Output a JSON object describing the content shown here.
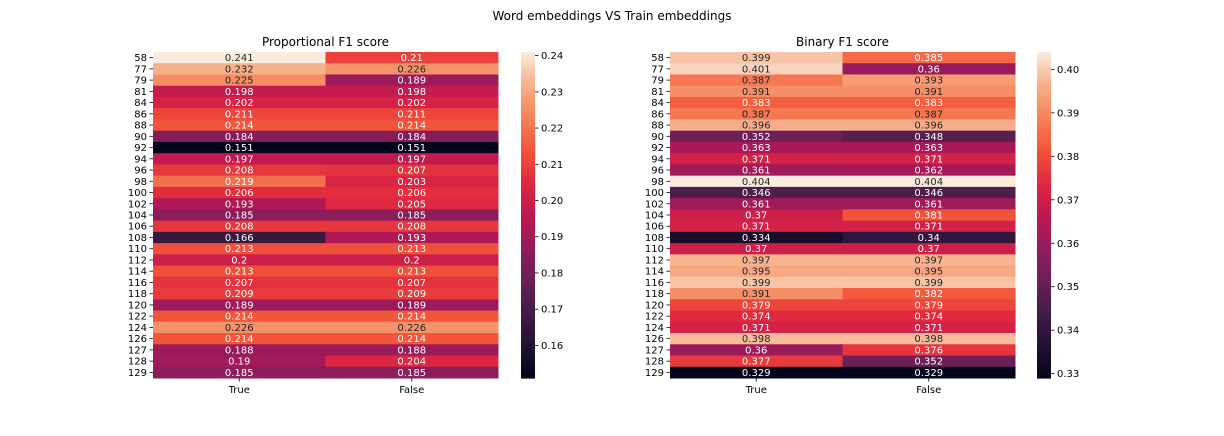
{
  "suptitle": "Word embeddings VS Train embeddings",
  "chart_data": [
    {
      "type": "heatmap",
      "title": "Proportional F1 score",
      "rows": [
        "58",
        "77",
        "79",
        "81",
        "84",
        "86",
        "88",
        "90",
        "92",
        "94",
        "96",
        "98",
        "100",
        "102",
        "104",
        "106",
        "108",
        "110",
        "112",
        "114",
        "116",
        "118",
        "120",
        "122",
        "124",
        "126",
        "127",
        "128",
        "129"
      ],
      "columns": [
        "True",
        "False"
      ],
      "values": [
        [
          "0.241",
          "0.21"
        ],
        [
          "0.232",
          "0.226"
        ],
        [
          "0.225",
          "0.189"
        ],
        [
          "0.198",
          "0.198"
        ],
        [
          "0.202",
          "0.202"
        ],
        [
          "0.211",
          "0.211"
        ],
        [
          "0.214",
          "0.214"
        ],
        [
          "0.184",
          "0.184"
        ],
        [
          "0.151",
          "0.151"
        ],
        [
          "0.197",
          "0.197"
        ],
        [
          "0.208",
          "0.207"
        ],
        [
          "0.219",
          "0.203"
        ],
        [
          "0.206",
          "0.206"
        ],
        [
          "0.193",
          "0.205"
        ],
        [
          "0.185",
          "0.185"
        ],
        [
          "0.208",
          "0.208"
        ],
        [
          "0.166",
          "0.193"
        ],
        [
          "0.213",
          "0.213"
        ],
        [
          "0.2",
          "0.2"
        ],
        [
          "0.213",
          "0.213"
        ],
        [
          "0.207",
          "0.207"
        ],
        [
          "0.209",
          "0.209"
        ],
        [
          "0.189",
          "0.189"
        ],
        [
          "0.214",
          "0.214"
        ],
        [
          "0.226",
          "0.226"
        ],
        [
          "0.214",
          "0.214"
        ],
        [
          "0.188",
          "0.188"
        ],
        [
          "0.19",
          "0.204"
        ],
        [
          "0.185",
          "0.185"
        ]
      ],
      "vmin": 0.151,
      "vmax": 0.241,
      "colorbar_ticks": [
        "0.16",
        "0.17",
        "0.18",
        "0.19",
        "0.20",
        "0.21",
        "0.22",
        "0.23",
        "0.24"
      ],
      "colormap": "rocket"
    },
    {
      "type": "heatmap",
      "title": "Binary F1 score",
      "rows": [
        "58",
        "77",
        "79",
        "81",
        "84",
        "86",
        "88",
        "90",
        "92",
        "94",
        "96",
        "98",
        "100",
        "102",
        "104",
        "106",
        "108",
        "110",
        "112",
        "114",
        "116",
        "118",
        "120",
        "122",
        "124",
        "126",
        "127",
        "128",
        "129"
      ],
      "columns": [
        "True",
        "False"
      ],
      "values": [
        [
          "0.399",
          "0.385"
        ],
        [
          "0.401",
          "0.36"
        ],
        [
          "0.387",
          "0.393"
        ],
        [
          "0.391",
          "0.391"
        ],
        [
          "0.383",
          "0.383"
        ],
        [
          "0.387",
          "0.387"
        ],
        [
          "0.396",
          "0.396"
        ],
        [
          "0.352",
          "0.348"
        ],
        [
          "0.363",
          "0.363"
        ],
        [
          "0.371",
          "0.371"
        ],
        [
          "0.361",
          "0.362"
        ],
        [
          "0.404",
          "0.404"
        ],
        [
          "0.346",
          "0.346"
        ],
        [
          "0.361",
          "0.361"
        ],
        [
          "0.37",
          "0.381"
        ],
        [
          "0.371",
          "0.371"
        ],
        [
          "0.334",
          "0.34"
        ],
        [
          "0.37",
          "0.37"
        ],
        [
          "0.397",
          "0.397"
        ],
        [
          "0.395",
          "0.395"
        ],
        [
          "0.399",
          "0.399"
        ],
        [
          "0.391",
          "0.382"
        ],
        [
          "0.379",
          "0.379"
        ],
        [
          "0.374",
          "0.374"
        ],
        [
          "0.371",
          "0.371"
        ],
        [
          "0.398",
          "0.398"
        ],
        [
          "0.36",
          "0.376"
        ],
        [
          "0.377",
          "0.352"
        ],
        [
          "0.329",
          "0.329"
        ]
      ],
      "vmin": 0.329,
      "vmax": 0.404,
      "colorbar_ticks": [
        "0.33",
        "0.34",
        "0.35",
        "0.36",
        "0.37",
        "0.38",
        "0.39",
        "0.40"
      ],
      "colormap": "rocket"
    }
  ]
}
